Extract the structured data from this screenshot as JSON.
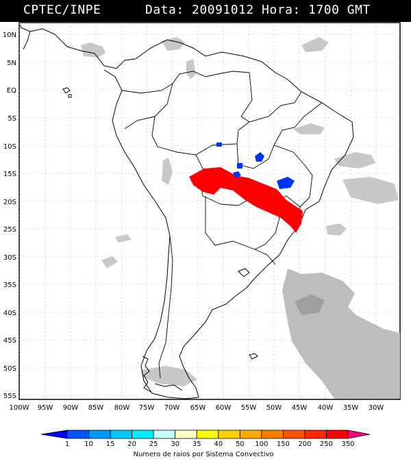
{
  "header": {
    "org": "CPTEC/INPE",
    "datetime": "Data: 20091012 Hora: 1700 GMT"
  },
  "map": {
    "lat_labels": [
      "10N",
      "5N",
      "EQ",
      "5S",
      "10S",
      "15S",
      "20S",
      "25S",
      "30S",
      "35S",
      "40S",
      "45S",
      "50S",
      "55S"
    ],
    "lon_labels": [
      "100W",
      "95W",
      "90W",
      "85W",
      "80W",
      "75W",
      "70W",
      "65W",
      "60W",
      "55W",
      "50W",
      "45W",
      "40W",
      "35W",
      "30W"
    ],
    "colors": {
      "frame": "#000000",
      "grid": "#9a9a9a",
      "coast": "#000000",
      "cloud": "#c8c8c8",
      "ocean_cloud_dark": "#b4b4b4",
      "high_activity": "#ff0000",
      "low_activity": "#0033ff"
    }
  },
  "legend": {
    "values": [
      "1",
      "10",
      "15",
      "20",
      "25",
      "30",
      "35",
      "40",
      "50",
      "100",
      "150",
      "200",
      "250",
      "350"
    ],
    "colors": [
      "#0000ff",
      "#0055ff",
      "#0099ff",
      "#00c8ff",
      "#00eeff",
      "#c8ffff",
      "#ffffc8",
      "#ffff00",
      "#ffd200",
      "#ffaa00",
      "#ff7d00",
      "#ff5000",
      "#ff2800",
      "#ff0000",
      "#ff0080"
    ],
    "title": "Numero de raios por Sistema Convectivo"
  }
}
